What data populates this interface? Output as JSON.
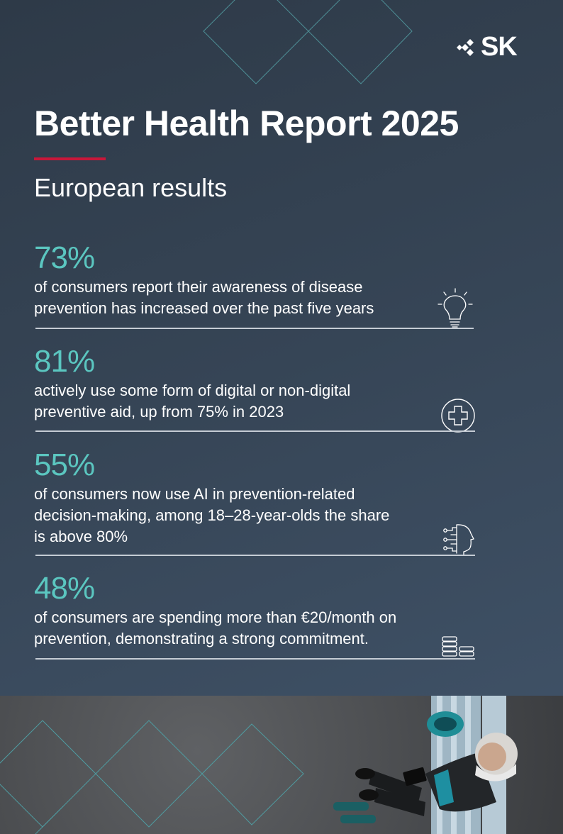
{
  "brand": {
    "logo_text": "SK"
  },
  "header": {
    "title": "Better Health Report 2025",
    "subtitle": "European results",
    "accent_color": "#c8173a"
  },
  "stats": [
    {
      "value": "73%",
      "line1": "of consumers report their awareness of disease",
      "line2": "prevention has increased over the past five years",
      "icon": "lightbulb-icon"
    },
    {
      "value": "81%",
      "line1": "actively use some form of digital or non-digital",
      "line2": "preventive aid, up from 75% in 2023",
      "icon": "medical-plus-icon"
    },
    {
      "value": "55%",
      "line1": "of consumers now use AI in prevention-related",
      "line2": "decision-making, among 18–28-year-olds the share",
      "line3": "is above 80%",
      "icon": "ai-head-icon"
    },
    {
      "value": "48%",
      "line1": "of consumers are spending more than €20/month on",
      "line2": "prevention, demonstrating a strong commitment.",
      "icon": "coin-stack-icon"
    }
  ],
  "colors": {
    "stat_value": "#5bc6c0",
    "text": "#ffffff",
    "divider": "#c5ccd4",
    "background": "#364556"
  },
  "photo": {
    "description_icon": "person-on-bench-photo"
  }
}
